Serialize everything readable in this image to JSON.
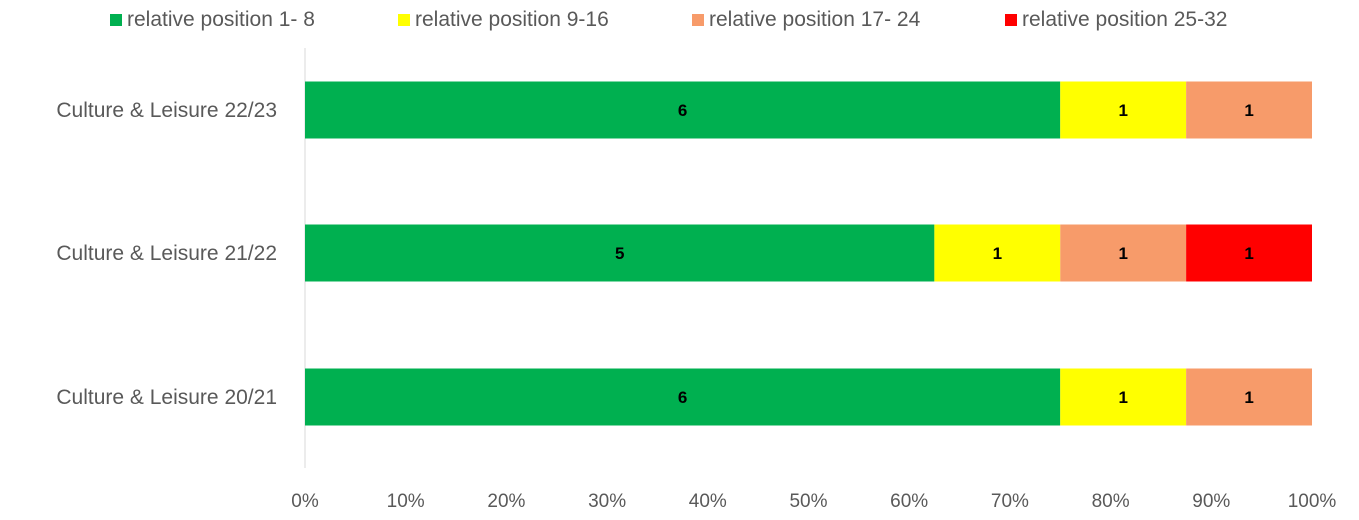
{
  "chart_data": {
    "type": "bar",
    "orientation": "horizontal",
    "stacking": "percent",
    "title": "",
    "xlabel": "",
    "ylabel": "",
    "xlim": [
      0,
      100
    ],
    "xticks": [
      "0%",
      "10%",
      "20%",
      "30%",
      "40%",
      "50%",
      "60%",
      "70%",
      "80%",
      "90%",
      "100%"
    ],
    "categories": [
      "Culture & Leisure 22/23",
      "Culture & Leisure 21/22",
      "Culture & Leisure 20/21"
    ],
    "series": [
      {
        "name": "relative position 1- 8",
        "color": "#00b050",
        "values": [
          6,
          5,
          6
        ]
      },
      {
        "name": "relative position 9-16",
        "color": "#ffff00",
        "values": [
          1,
          1,
          1
        ]
      },
      {
        "name": "relative position 17- 24",
        "color": "#f79b6a",
        "values": [
          1,
          1,
          1
        ]
      },
      {
        "name": "relative position 25-32",
        "color": "#ff0000",
        "values": [
          0,
          1,
          0
        ]
      }
    ],
    "data_labels": true,
    "legend_position": "top",
    "grid": false
  }
}
